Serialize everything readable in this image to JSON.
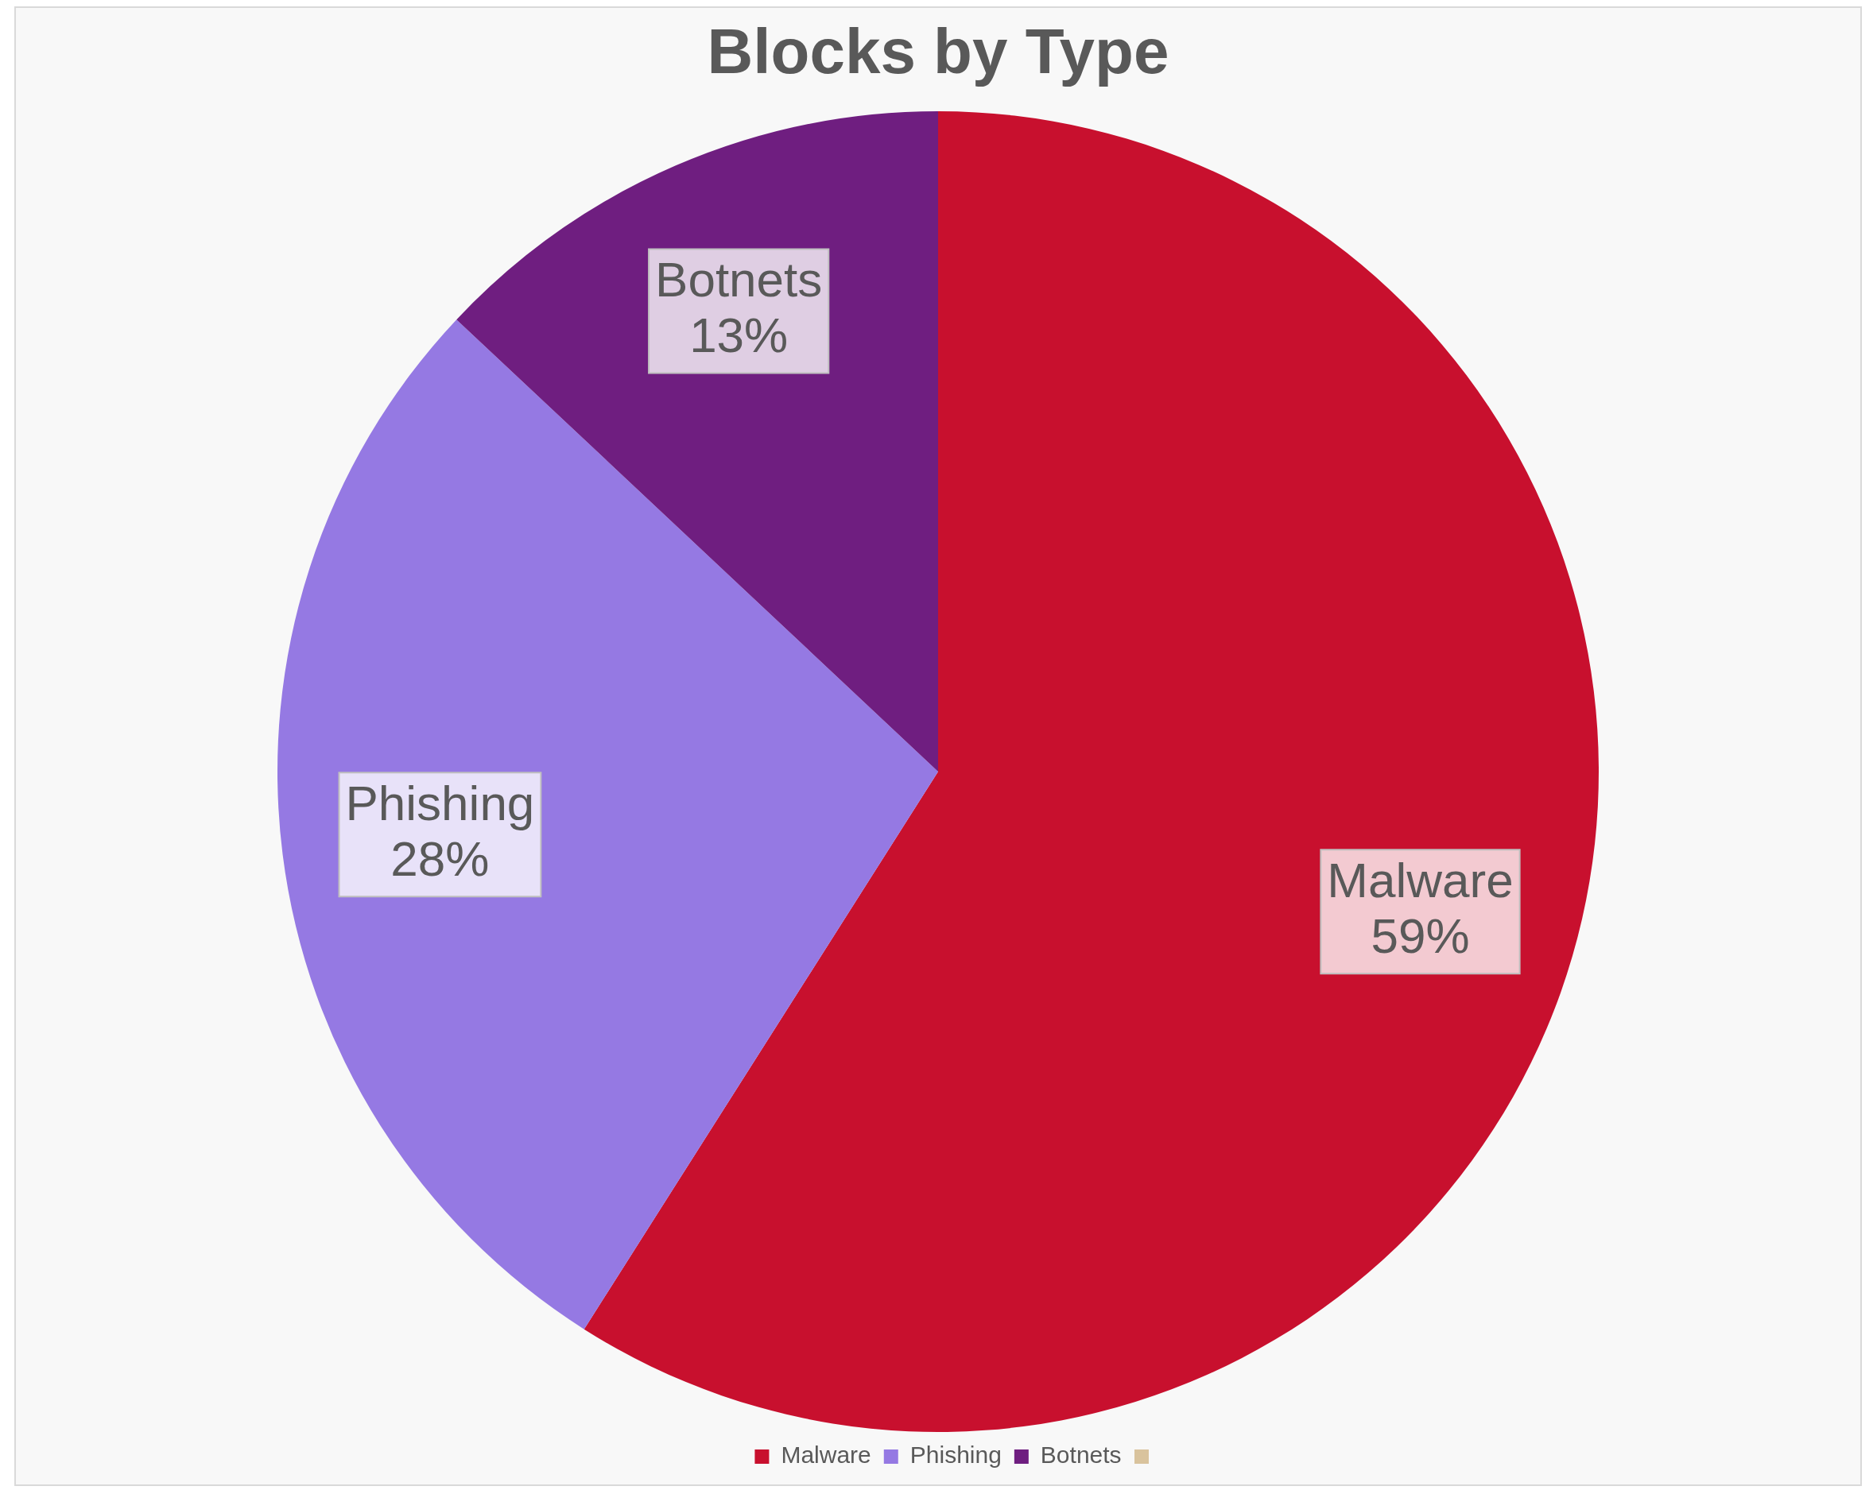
{
  "chart_data": {
    "type": "pie",
    "title": "Blocks by Type",
    "categories": [
      "Malware",
      "Phishing",
      "Botnets",
      null
    ],
    "values": [
      59,
      28,
      13,
      0
    ],
    "colors": [
      "#c8102e",
      "#9579e3",
      "#6f1e80",
      "#d9c39d"
    ],
    "value_labels": [
      "59%",
      "28%",
      "13%",
      null
    ],
    "legend": "bottom"
  }
}
